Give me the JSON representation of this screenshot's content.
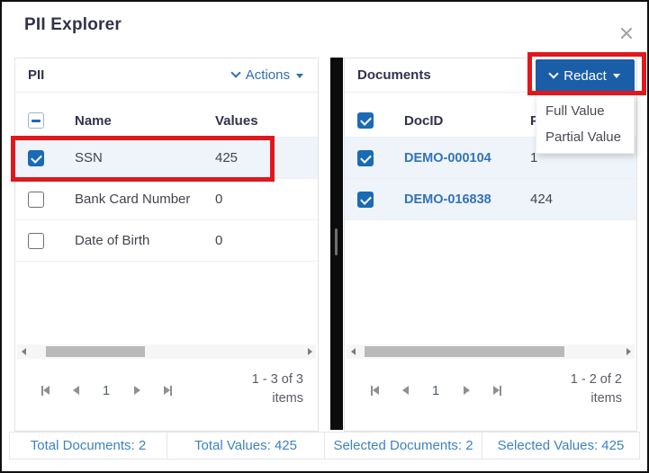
{
  "dialog": {
    "title": "PII Explorer"
  },
  "pii_panel": {
    "title": "PII",
    "actions": {
      "label": "Actions"
    },
    "table": {
      "select_all_state": "indeterminate",
      "columns": {
        "name": "Name",
        "values": "Values"
      },
      "rows": [
        {
          "name": "SSN",
          "values": "425",
          "checked": true,
          "selected": true,
          "highlighted": true
        },
        {
          "name": "Bank Card Number",
          "values": "0",
          "checked": false
        },
        {
          "name": "Date of Birth",
          "values": "0",
          "checked": false
        }
      ]
    },
    "pager": {
      "page": "1",
      "info": "1 - 3 of 3",
      "info_unit": "items"
    }
  },
  "documents_panel": {
    "title": "Documents",
    "redact_button": {
      "label": "Redact"
    },
    "redact_menu": {
      "items": [
        {
          "label": "Full Value"
        },
        {
          "label": "Partial Value"
        }
      ]
    },
    "table": {
      "select_all_state": "checked",
      "columns": {
        "doc_id": "DocID",
        "values_partial": "P"
      },
      "rows": [
        {
          "doc_id": "DEMO-000104",
          "values": "1",
          "checked": true,
          "selected": true
        },
        {
          "doc_id": "DEMO-016838",
          "values": "424",
          "checked": true,
          "selected": true
        }
      ]
    },
    "pager": {
      "page": "1",
      "info": "1 - 2 of 2",
      "info_unit": "items"
    }
  },
  "footer": {
    "total_documents": "Total Documents: 2",
    "total_values": "Total Values: 425",
    "selected_documents": "Selected Documents: 2",
    "selected_values": "Selected Values: 425"
  },
  "colors": {
    "accent_blue": "#1b5ea8",
    "checkbox_blue": "#1a6ab5",
    "link_blue": "#3173b8",
    "footer_blue": "#3d82c4",
    "highlight_red": "#e0181c",
    "selected_row_bg": "#eef4fa"
  }
}
